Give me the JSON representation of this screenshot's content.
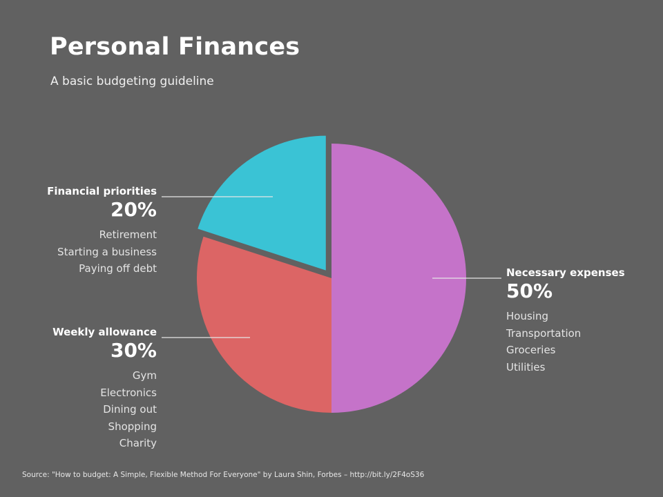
{
  "title": "Personal Finances",
  "subtitle": "A basic budgeting guideline",
  "source": "Source: \"How to budget: A Simple, Flexible Method For Everyone\" by Laura Shin, Forbes – http://bit.ly/2F4oS36",
  "chart_data": {
    "type": "pie",
    "slices": [
      {
        "name": "Necessary expenses",
        "value": 50,
        "label": "50%",
        "color": "#c573c9",
        "exploded": false,
        "items": [
          "Housing",
          "Transportation",
          "Groceries",
          "Utilities"
        ]
      },
      {
        "name": "Weekly allowance",
        "value": 30,
        "label": "30%",
        "color": "#dc6565",
        "exploded": false,
        "items": [
          "Gym",
          "Electronics",
          "Dining out",
          "Shopping",
          "Charity"
        ]
      },
      {
        "name": "Financial priorities",
        "value": 20,
        "label": "20%",
        "color": "#3ac3d5",
        "exploded": true,
        "items": [
          "Retirement",
          "Starting a business",
          "Paying off debt"
        ]
      }
    ]
  }
}
